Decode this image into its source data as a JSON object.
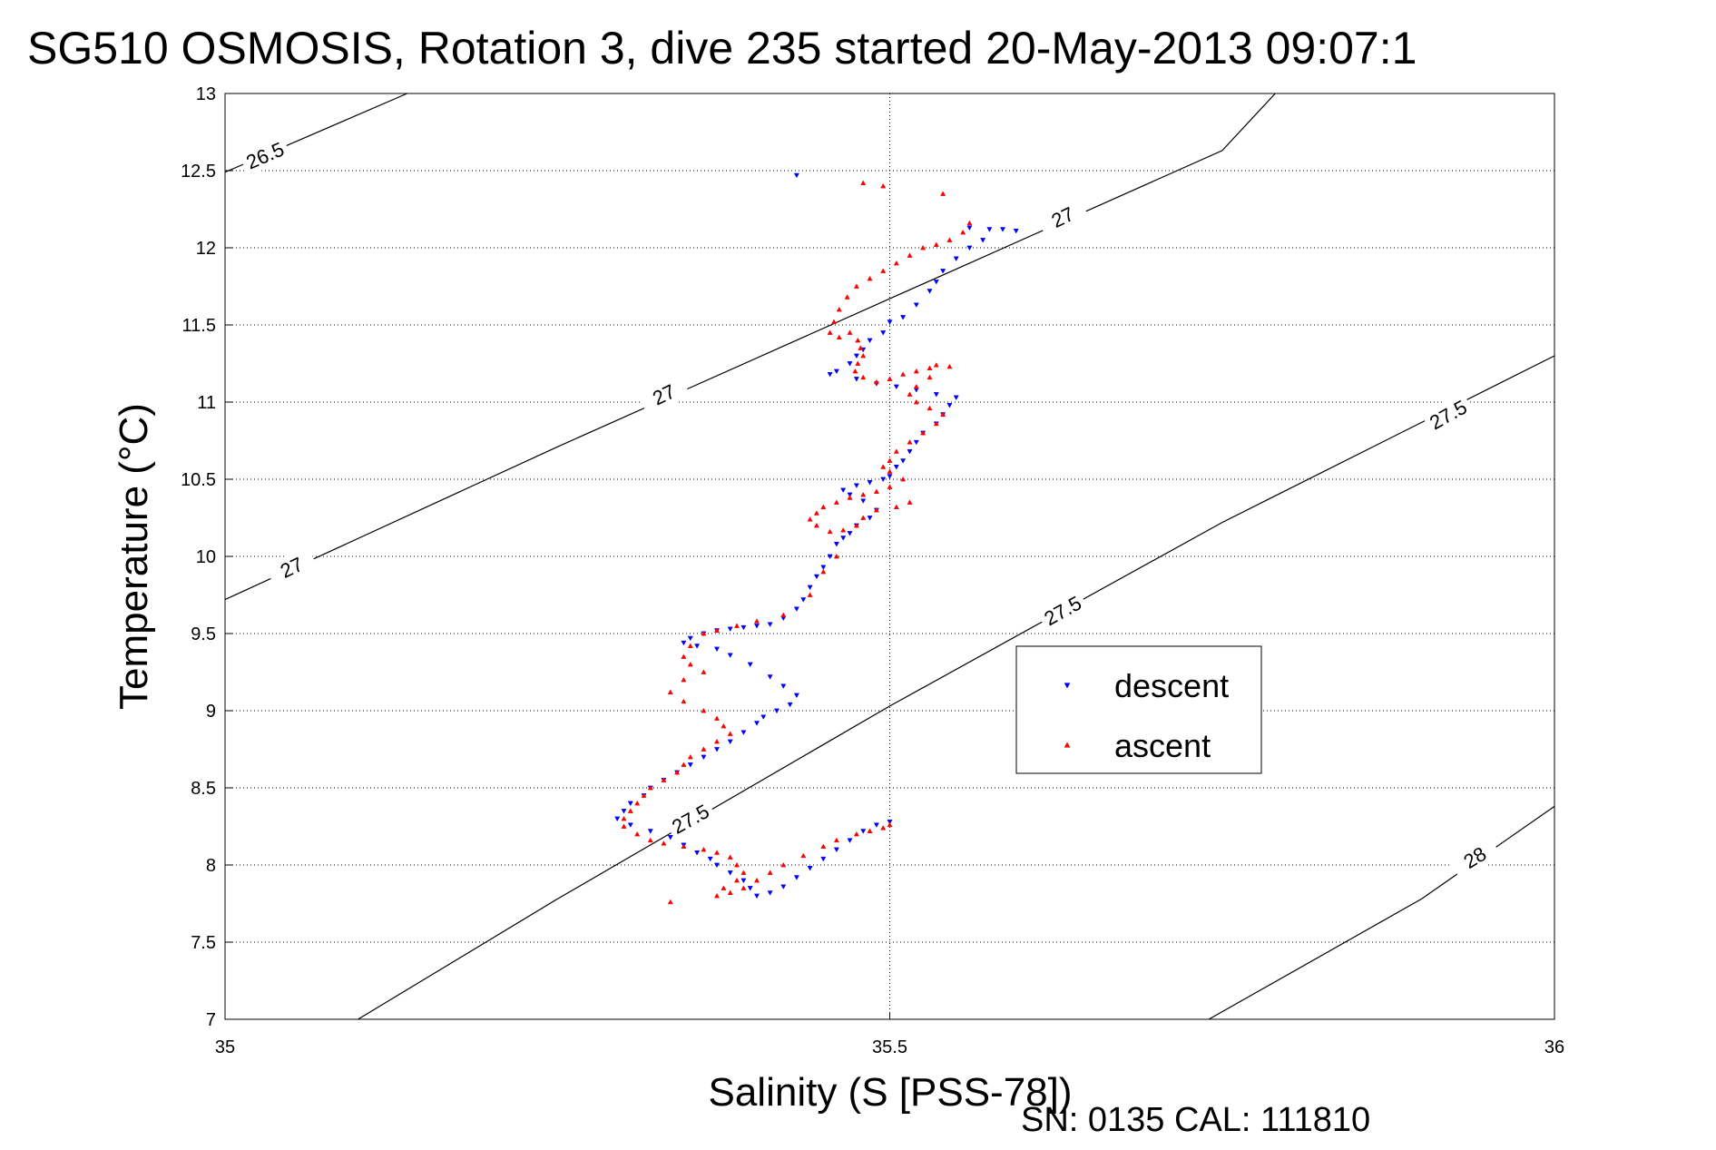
{
  "chart_data": {
    "type": "scatter",
    "title": "SG510 OSMOSIS, Rotation 3, dive 235 started 20-May-2013 09:07:1",
    "xlabel": "Salinity (S [PSS-78])",
    "ylabel": "Temperature (°C)",
    "xlim": [
      35,
      36
    ],
    "ylim": [
      7,
      13
    ],
    "x_ticks": [
      35,
      35.5,
      36
    ],
    "x_tick_labels": [
      "35",
      "35.5",
      "36"
    ],
    "y_ticks": [
      7,
      7.5,
      8,
      8.5,
      9,
      9.5,
      10,
      10.5,
      11,
      11.5,
      12,
      12.5,
      13
    ],
    "y_tick_labels": [
      "7",
      "7.5",
      "8",
      "8.5",
      "9",
      "9.5",
      "10",
      "10.5",
      "11",
      "11.5",
      "12",
      "12.5",
      "13"
    ],
    "grid": true,
    "legend_position": "right-middle",
    "footer": "SN: 0135  CAL: 111810",
    "density_contours": [
      {
        "level": "26.5",
        "points": [
          [
            35.0,
            12.49
          ],
          [
            35.137,
            13.0
          ]
        ],
        "labels": [
          {
            "x": 35.03,
            "y": 12.6,
            "text": "26.5"
          }
        ]
      },
      {
        "level": "27",
        "points": [
          [
            35.0,
            9.72
          ],
          [
            35.25,
            10.71
          ],
          [
            35.5,
            11.67
          ],
          [
            35.75,
            12.63
          ],
          [
            35.79,
            13.0
          ]
        ],
        "labels": [
          {
            "x": 35.05,
            "y": 9.93,
            "text": "27"
          },
          {
            "x": 35.33,
            "y": 11.05,
            "text": "27"
          },
          {
            "x": 35.63,
            "y": 12.2,
            "text": "27"
          }
        ]
      },
      {
        "level": "27.5",
        "points": [
          [
            35.1,
            7.0
          ],
          [
            35.25,
            7.78
          ],
          [
            35.5,
            9.03
          ],
          [
            35.75,
            10.22
          ],
          [
            36.0,
            11.3
          ]
        ],
        "labels": [
          {
            "x": 35.35,
            "y": 8.3,
            "text": "27.5"
          },
          {
            "x": 35.63,
            "y": 9.65,
            "text": "27.5"
          },
          {
            "x": 35.92,
            "y": 10.92,
            "text": "27.5"
          }
        ]
      },
      {
        "level": "28",
        "points": [
          [
            35.74,
            7.0
          ],
          [
            35.9,
            7.78
          ],
          [
            36.0,
            8.38
          ]
        ],
        "labels": [
          {
            "x": 35.94,
            "y": 8.05,
            "text": "28"
          }
        ]
      }
    ],
    "series": [
      {
        "name": "descent",
        "color": "#0000ff",
        "marker": "triangle-down",
        "points": [
          [
            35.43,
            12.47
          ],
          [
            35.56,
            12.13
          ],
          [
            35.575,
            12.12
          ],
          [
            35.585,
            12.12
          ],
          [
            35.595,
            12.11
          ],
          [
            35.57,
            12.05
          ],
          [
            35.56,
            12.0
          ],
          [
            35.55,
            11.93
          ],
          [
            35.54,
            11.85
          ],
          [
            35.535,
            11.78
          ],
          [
            35.53,
            11.72
          ],
          [
            35.52,
            11.63
          ],
          [
            35.51,
            11.55
          ],
          [
            35.5,
            11.52
          ],
          [
            35.495,
            11.45
          ],
          [
            35.485,
            11.4
          ],
          [
            35.48,
            11.34
          ],
          [
            35.475,
            11.3
          ],
          [
            35.47,
            11.25
          ],
          [
            35.46,
            11.2
          ],
          [
            35.455,
            11.18
          ],
          [
            35.475,
            11.15
          ],
          [
            35.49,
            11.12
          ],
          [
            35.505,
            11.1
          ],
          [
            35.52,
            11.08
          ],
          [
            35.535,
            11.05
          ],
          [
            35.55,
            11.03
          ],
          [
            35.545,
            10.98
          ],
          [
            35.54,
            10.92
          ],
          [
            35.535,
            10.86
          ],
          [
            35.525,
            10.8
          ],
          [
            35.52,
            10.74
          ],
          [
            35.515,
            10.68
          ],
          [
            35.51,
            10.62
          ],
          [
            35.505,
            10.58
          ],
          [
            35.5,
            10.52
          ],
          [
            35.495,
            10.5
          ],
          [
            35.485,
            10.48
          ],
          [
            35.475,
            10.46
          ],
          [
            35.465,
            10.43
          ],
          [
            35.47,
            10.4
          ],
          [
            35.48,
            10.36
          ],
          [
            35.49,
            10.3
          ],
          [
            35.485,
            10.25
          ],
          [
            35.475,
            10.2
          ],
          [
            35.47,
            10.15
          ],
          [
            35.465,
            10.12
          ],
          [
            35.46,
            10.08
          ],
          [
            35.455,
            10.0
          ],
          [
            35.45,
            9.93
          ],
          [
            35.445,
            9.87
          ],
          [
            35.44,
            9.8
          ],
          [
            35.435,
            9.72
          ],
          [
            35.43,
            9.66
          ],
          [
            35.42,
            9.6
          ],
          [
            35.41,
            9.56
          ],
          [
            35.4,
            9.55
          ],
          [
            35.39,
            9.54
          ],
          [
            35.38,
            9.53
          ],
          [
            35.37,
            9.52
          ],
          [
            35.36,
            9.5
          ],
          [
            35.35,
            9.47
          ],
          [
            35.345,
            9.44
          ],
          [
            35.355,
            9.42
          ],
          [
            35.37,
            9.4
          ],
          [
            35.38,
            9.36
          ],
          [
            35.395,
            9.3
          ],
          [
            35.41,
            9.22
          ],
          [
            35.42,
            9.16
          ],
          [
            35.43,
            9.1
          ],
          [
            35.425,
            9.04
          ],
          [
            35.415,
            9.0
          ],
          [
            35.405,
            8.96
          ],
          [
            35.4,
            8.92
          ],
          [
            35.39,
            8.86
          ],
          [
            35.38,
            8.8
          ],
          [
            35.37,
            8.75
          ],
          [
            35.36,
            8.7
          ],
          [
            35.35,
            8.65
          ],
          [
            35.34,
            8.6
          ],
          [
            35.33,
            8.55
          ],
          [
            35.32,
            8.5
          ],
          [
            35.315,
            8.45
          ],
          [
            35.305,
            8.4
          ],
          [
            35.3,
            8.35
          ],
          [
            35.295,
            8.3
          ],
          [
            35.305,
            8.26
          ],
          [
            35.32,
            8.22
          ],
          [
            35.335,
            8.18
          ],
          [
            35.345,
            8.13
          ],
          [
            35.355,
            8.08
          ],
          [
            35.365,
            8.04
          ],
          [
            35.37,
            8.0
          ],
          [
            35.38,
            7.95
          ],
          [
            35.39,
            7.9
          ],
          [
            35.395,
            7.85
          ],
          [
            35.4,
            7.8
          ],
          [
            35.41,
            7.82
          ],
          [
            35.42,
            7.86
          ],
          [
            35.43,
            7.92
          ],
          [
            35.44,
            7.98
          ],
          [
            35.45,
            8.04
          ],
          [
            35.46,
            8.1
          ],
          [
            35.47,
            8.16
          ],
          [
            35.48,
            8.22
          ],
          [
            35.49,
            8.26
          ],
          [
            35.5,
            8.28
          ]
        ]
      },
      {
        "name": "ascent",
        "color": "#ff0000",
        "marker": "triangle-up",
        "points": [
          [
            35.48,
            12.42
          ],
          [
            35.495,
            12.4
          ],
          [
            35.54,
            12.35
          ],
          [
            35.56,
            12.16
          ],
          [
            35.555,
            12.1
          ],
          [
            35.545,
            12.05
          ],
          [
            35.535,
            12.02
          ],
          [
            35.525,
            12.0
          ],
          [
            35.515,
            11.95
          ],
          [
            35.505,
            11.9
          ],
          [
            35.495,
            11.85
          ],
          [
            35.485,
            11.8
          ],
          [
            35.475,
            11.75
          ],
          [
            35.468,
            11.68
          ],
          [
            35.462,
            11.6
          ],
          [
            35.458,
            11.52
          ],
          [
            35.455,
            11.45
          ],
          [
            35.462,
            11.42
          ],
          [
            35.47,
            11.45
          ],
          [
            35.476,
            11.4
          ],
          [
            35.478,
            11.35
          ],
          [
            35.48,
            11.3
          ],
          [
            35.476,
            11.25
          ],
          [
            35.474,
            11.2
          ],
          [
            35.48,
            11.16
          ],
          [
            35.49,
            11.13
          ],
          [
            35.5,
            11.15
          ],
          [
            35.51,
            11.18
          ],
          [
            35.52,
            11.2
          ],
          [
            35.53,
            11.22
          ],
          [
            35.535,
            11.24
          ],
          [
            35.545,
            11.23
          ],
          [
            35.53,
            11.16
          ],
          [
            35.52,
            11.1
          ],
          [
            35.515,
            11.05
          ],
          [
            35.52,
            11.0
          ],
          [
            35.53,
            10.96
          ],
          [
            35.54,
            10.92
          ],
          [
            35.535,
            10.86
          ],
          [
            35.525,
            10.8
          ],
          [
            35.515,
            10.74
          ],
          [
            35.505,
            10.68
          ],
          [
            35.5,
            10.62
          ],
          [
            35.495,
            10.58
          ],
          [
            35.5,
            10.55
          ],
          [
            35.51,
            10.5
          ],
          [
            35.5,
            10.45
          ],
          [
            35.49,
            10.42
          ],
          [
            35.48,
            10.4
          ],
          [
            35.47,
            10.38
          ],
          [
            35.46,
            10.35
          ],
          [
            35.45,
            10.32
          ],
          [
            35.445,
            10.28
          ],
          [
            35.44,
            10.24
          ],
          [
            35.445,
            10.2
          ],
          [
            35.455,
            10.16
          ],
          [
            35.465,
            10.17
          ],
          [
            35.475,
            10.2
          ],
          [
            35.48,
            10.25
          ],
          [
            35.49,
            10.3
          ],
          [
            35.505,
            10.32
          ],
          [
            35.515,
            10.35
          ],
          [
            35.46,
            10.0
          ],
          [
            35.45,
            9.9
          ],
          [
            35.44,
            9.75
          ],
          [
            35.42,
            9.62
          ],
          [
            35.4,
            9.58
          ],
          [
            35.385,
            9.55
          ],
          [
            35.37,
            9.52
          ],
          [
            35.36,
            9.5
          ],
          [
            35.35,
            9.42
          ],
          [
            35.345,
            9.35
          ],
          [
            35.35,
            9.3
          ],
          [
            35.36,
            9.25
          ],
          [
            35.345,
            9.2
          ],
          [
            35.335,
            9.12
          ],
          [
            35.345,
            9.06
          ],
          [
            35.36,
            9.0
          ],
          [
            35.37,
            8.95
          ],
          [
            35.375,
            8.9
          ],
          [
            35.38,
            8.85
          ],
          [
            35.37,
            8.8
          ],
          [
            35.36,
            8.75
          ],
          [
            35.35,
            8.7
          ],
          [
            35.345,
            8.65
          ],
          [
            35.34,
            8.6
          ],
          [
            35.33,
            8.55
          ],
          [
            35.32,
            8.5
          ],
          [
            35.315,
            8.45
          ],
          [
            35.31,
            8.4
          ],
          [
            35.305,
            8.35
          ],
          [
            35.3,
            8.3
          ],
          [
            35.3,
            8.25
          ],
          [
            35.31,
            8.2
          ],
          [
            35.32,
            8.16
          ],
          [
            35.33,
            8.14
          ],
          [
            35.345,
            8.12
          ],
          [
            35.36,
            8.1
          ],
          [
            35.37,
            8.08
          ],
          [
            35.38,
            8.05
          ],
          [
            35.385,
            8.0
          ],
          [
            35.39,
            7.95
          ],
          [
            35.385,
            7.9
          ],
          [
            35.375,
            7.85
          ],
          [
            35.37,
            7.8
          ],
          [
            35.335,
            7.76
          ],
          [
            35.38,
            7.82
          ],
          [
            35.39,
            7.85
          ],
          [
            35.4,
            7.9
          ],
          [
            35.41,
            7.95
          ],
          [
            35.42,
            8.0
          ],
          [
            35.435,
            8.06
          ],
          [
            35.45,
            8.12
          ],
          [
            35.46,
            8.16
          ],
          [
            35.475,
            8.2
          ],
          [
            35.485,
            8.22
          ],
          [
            35.495,
            8.24
          ],
          [
            35.5,
            8.26
          ]
        ]
      }
    ]
  }
}
